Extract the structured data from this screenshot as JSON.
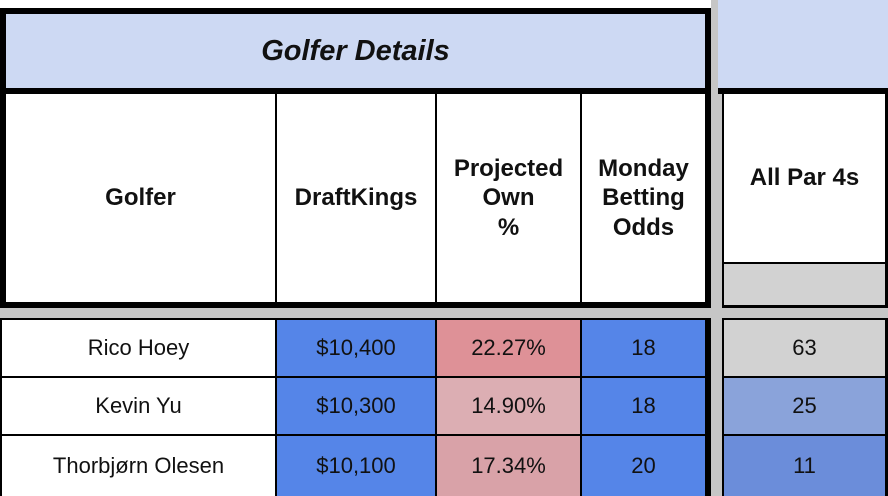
{
  "page": {
    "background": "#c6c6c6"
  },
  "golfer_table": {
    "title": "Golfer Details",
    "title_bg": "#cdd9f3",
    "headers": {
      "golfer": "Golfer",
      "draftkings": "DraftKings",
      "projected_own": "Projected\nOwn\n%",
      "monday_odds": "Monday\nBetting\nOdds"
    },
    "rows": [
      {
        "golfer": "Rico Hoey",
        "draftkings": "$10,400",
        "draftkings_bg": "#5585e8",
        "projected_own": "22.27%",
        "projected_own_bg": "#de9197",
        "monday_odds": "18",
        "monday_odds_bg": "#5585e8"
      },
      {
        "golfer": "Kevin Yu",
        "draftkings": "$10,300",
        "draftkings_bg": "#5585e8",
        "projected_own": "14.90%",
        "projected_own_bg": "#dcaeb3",
        "monday_odds": "18",
        "monday_odds_bg": "#5585e8"
      },
      {
        "golfer": "Thorbjørn Olesen",
        "draftkings": "$10,100",
        "draftkings_bg": "#5585e8",
        "projected_own": "17.34%",
        "projected_own_bg": "#d9a2a8",
        "monday_odds": "20",
        "monday_odds_bg": "#5585e8"
      }
    ]
  },
  "par4_column": {
    "title_bg": "#cdd9f3",
    "header": "All Par 4s",
    "subheader_bg": "#d2d2d2",
    "rows": [
      {
        "value": "63",
        "bg": "#d2d2d2"
      },
      {
        "value": "25",
        "bg": "#8aa3da"
      },
      {
        "value": "11",
        "bg": "#6b8dda"
      }
    ]
  }
}
